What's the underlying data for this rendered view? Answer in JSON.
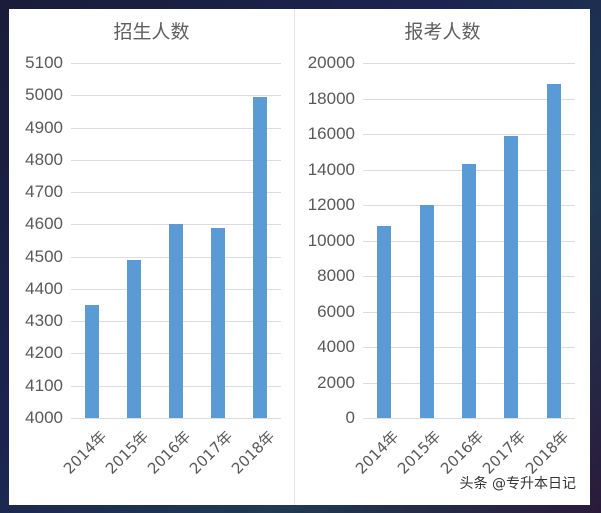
{
  "chart_data": [
    {
      "type": "bar",
      "title": "招生人数",
      "categories": [
        "2014年",
        "2015年",
        "2016年",
        "2017年",
        "2018年"
      ],
      "values": [
        4350,
        4490,
        4600,
        4590,
        4995
      ],
      "xlabel": "",
      "ylabel": "",
      "ylim": [
        4000,
        5100
      ],
      "yticks": [
        "5100",
        "5000",
        "4900",
        "4800",
        "4700",
        "4600",
        "4500",
        "4400",
        "4300",
        "4200",
        "4100",
        "4000"
      ],
      "grid": true,
      "legend": null,
      "bar_color": "#5b9bd5"
    },
    {
      "type": "bar",
      "title": "报考人数",
      "categories": [
        "2014年",
        "2015年",
        "2016年",
        "2017年",
        "2018年"
      ],
      "values": [
        10800,
        12000,
        14300,
        15900,
        18800
      ],
      "xlabel": "",
      "ylabel": "",
      "ylim": [
        0,
        20000
      ],
      "yticks": [
        "20000",
        "18000",
        "16000",
        "14000",
        "12000",
        "10000",
        "8000",
        "6000",
        "4000",
        "2000",
        "0"
      ],
      "grid": true,
      "legend": null,
      "bar_color": "#5b9bd5"
    }
  ],
  "watermark": "头条 @专升本日记"
}
